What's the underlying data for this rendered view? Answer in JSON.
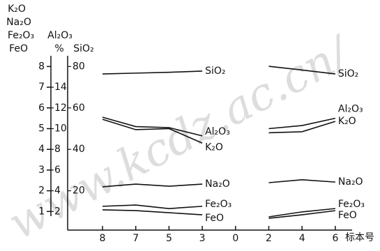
{
  "chart_data": {
    "type": "line",
    "watermark": "www.kcdz.ac.cn/",
    "ylabel": [
      "K₂O",
      "Na₂O",
      "Fe₂O₃",
      "FeO"
    ],
    "y2label": [
      "Al₂O₃",
      "%"
    ],
    "y3label": "SiO₂",
    "xlabel": "标本号",
    "categories": [
      "8",
      "7",
      "5",
      "3",
      "0",
      "2",
      "4",
      "6"
    ],
    "ylim": [
      0,
      8.4
    ],
    "yticks": [
      1,
      2,
      3,
      4,
      5,
      6,
      7,
      8
    ],
    "y2lim": [
      0,
      16.8
    ],
    "y2ticks": [
      2,
      4,
      6,
      8,
      10,
      12,
      14
    ],
    "y3lim": [
      0,
      84
    ],
    "y3ticks": [
      20,
      40,
      60,
      80
    ],
    "series": [
      {
        "name": "SiO₂",
        "color": "#111",
        "axis": "y3",
        "values": [
          76.4,
          76.8,
          77.2,
          77.8,
          null,
          80.1,
          78.3,
          76.4
        ]
      },
      {
        "name": "Al₂O₃",
        "color": "#111",
        "axis": "y2",
        "values": [
          11.1,
          10.2,
          10.1,
          9.3,
          null,
          10.0,
          10.3,
          11.0
        ]
      },
      {
        "name": "K₂O",
        "color": "#111",
        "axis": "y",
        "values": [
          5.45,
          4.95,
          5.0,
          4.3,
          null,
          4.8,
          4.85,
          5.35
        ]
      },
      {
        "name": "Na₂O",
        "color": "#111",
        "axis": "y",
        "values": [
          2.19,
          2.32,
          2.22,
          2.32,
          null,
          2.39,
          2.53,
          2.42
        ]
      },
      {
        "name": "Fe₂O₃",
        "color": "#111",
        "axis": "y",
        "values": [
          1.25,
          1.31,
          1.14,
          1.25,
          null,
          0.74,
          0.98,
          1.14
        ]
      },
      {
        "name": "FeO",
        "color": "#111",
        "axis": "y",
        "values": [
          1.08,
          1.04,
          0.94,
          0.84,
          null,
          0.67,
          0.84,
          1.04
        ]
      }
    ]
  }
}
